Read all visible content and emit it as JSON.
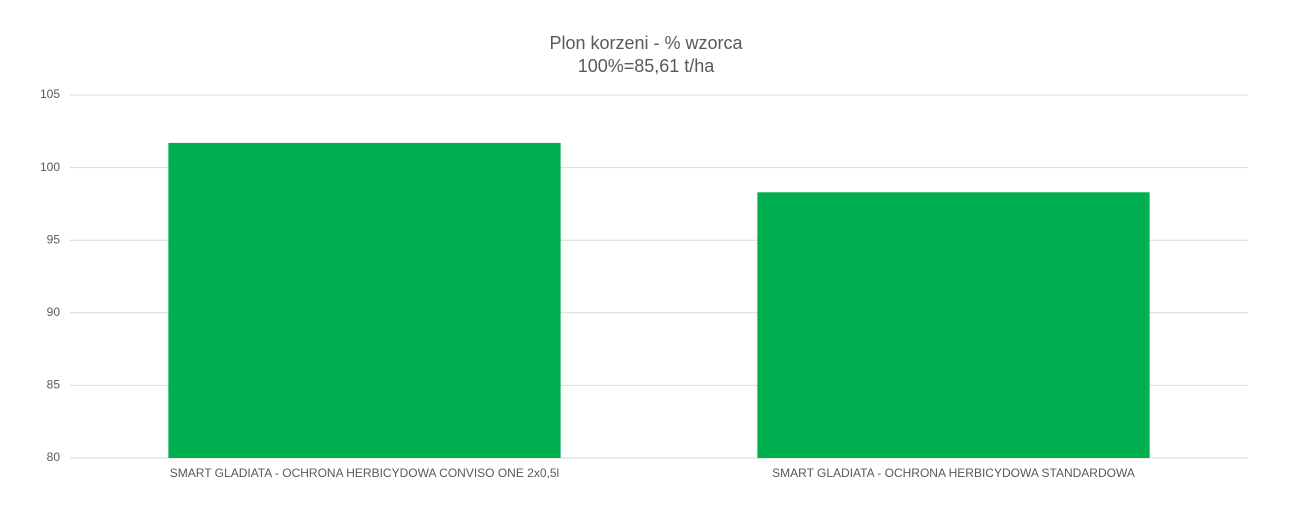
{
  "chart_data": {
    "type": "bar",
    "title": "Plon korzeni - % wzorca",
    "subtitle": "100%=85,61 t/ha",
    "categories": [
      "SMART GLADIATA - OCHRONA HERBICYDOWA CONVISO ONE 2x0,5l",
      "SMART GLADIATA - OCHRONA HERBICYDOWA STANDARDOWA"
    ],
    "values": [
      101.7,
      98.3
    ],
    "color": "#00b050",
    "reference_line": 100,
    "reference_color": "#000000",
    "ylim": [
      80,
      105
    ],
    "yticks": [
      80,
      85,
      90,
      95,
      100,
      105
    ],
    "grid": true
  }
}
